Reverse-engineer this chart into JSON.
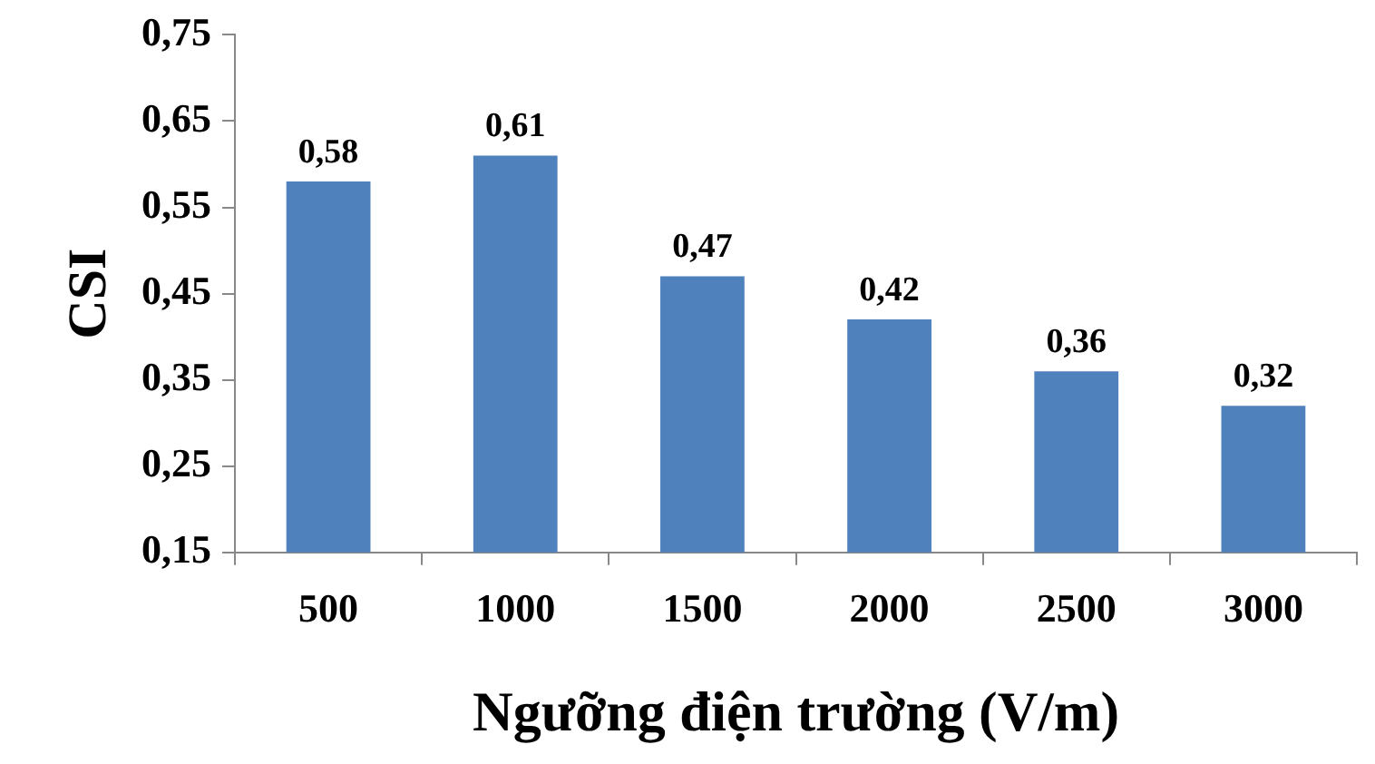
{
  "chart_data": {
    "type": "bar",
    "xlabel": "Ngưỡng điện trường (V/m)",
    "ylabel": "CSI",
    "categories": [
      "500",
      "1000",
      "1500",
      "2000",
      "2500",
      "3000"
    ],
    "values": [
      0.58,
      0.61,
      0.47,
      0.42,
      0.36,
      0.32
    ],
    "value_labels": [
      "0,58",
      "0,61",
      "0,47",
      "0,42",
      "0,36",
      "0,32"
    ],
    "color": "#4f81bd",
    "ylim": [
      0.15,
      0.75
    ],
    "yticks": [
      {
        "value": 0.15,
        "label": "0,15"
      },
      {
        "value": 0.25,
        "label": "0,25"
      },
      {
        "value": 0.35,
        "label": "0,35"
      },
      {
        "value": 0.45,
        "label": "0,45"
      },
      {
        "value": 0.55,
        "label": "0,55"
      },
      {
        "value": 0.65,
        "label": "0,65"
      },
      {
        "value": 0.75,
        "label": "0,75"
      }
    ],
    "grid": false,
    "legend": false
  }
}
